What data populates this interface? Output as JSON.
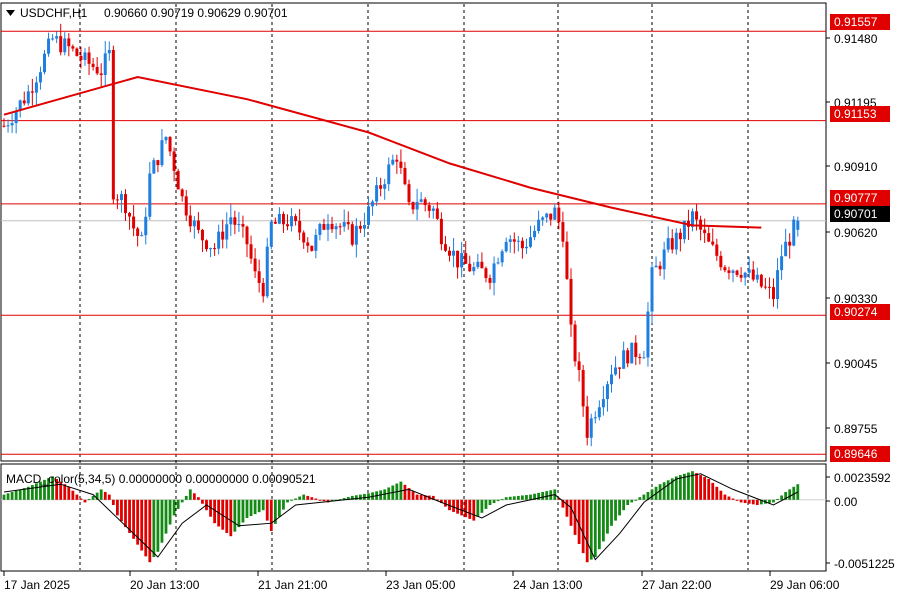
{
  "header": {
    "symbol": "USDCHF,H1",
    "ohlc": "0.90660 0.90719 0.90629 0.90701"
  },
  "indicator": {
    "title": "MACD_color(5,34,5) 0.00000000 0.00000000 0.00090521",
    "axis_labels": [
      "0.0023592",
      "0.00",
      "-0.0051225"
    ]
  },
  "price_axis": {
    "labels": [
      "0.91480",
      "0.91195",
      "0.90910",
      "0.90620",
      "0.90330",
      "0.90045",
      "0.89755"
    ]
  },
  "levels": [
    {
      "label": "0.91557",
      "color": "#e00000",
      "kind": "resistance"
    },
    {
      "label": "0.91153",
      "color": "#e00000",
      "kind": "resistance"
    },
    {
      "label": "0.90777",
      "color": "#e00000",
      "kind": "resistance"
    },
    {
      "label": "0.90274",
      "color": "#e00000",
      "kind": "support"
    },
    {
      "label": "0.89646",
      "color": "#e00000",
      "kind": "support"
    }
  ],
  "current_price": {
    "label": "0.90701",
    "color": "#000000"
  },
  "time_axis": {
    "labels": [
      "17 Jan 2025",
      "20 Jan 13:00",
      "21 Jan 21:00",
      "23 Jan 05:00",
      "24 Jan 13:00",
      "27 Jan 22:00",
      "29 Jan 06:00"
    ]
  },
  "colors": {
    "bull": "#1e7fe0",
    "bear": "#e00000",
    "ma": "#e00000",
    "macd_pos": "#138a13",
    "macd_neg": "#e00000"
  },
  "chart_data": {
    "type": "candlestick",
    "symbol": "USDCHF",
    "timeframe": "H1",
    "last_bar": {
      "open": 0.9066,
      "high": 0.90719,
      "low": 0.90629,
      "close": 0.90701
    },
    "ylim": [
      0.8962,
      0.9168
    ],
    "close_path": [
      [
        0,
        0.9113
      ],
      [
        6,
        0.9128
      ],
      [
        12,
        0.9152
      ],
      [
        16,
        0.9148
      ],
      [
        20,
        0.9142
      ],
      [
        24,
        0.9138
      ],
      [
        26,
        0.9145
      ],
      [
        27,
        0.9084
      ],
      [
        30,
        0.9078
      ],
      [
        32,
        0.9067
      ],
      [
        34,
        0.906
      ],
      [
        36,
        0.909
      ],
      [
        40,
        0.9108
      ],
      [
        42,
        0.9095
      ],
      [
        44,
        0.908
      ],
      [
        48,
        0.9064
      ],
      [
        52,
        0.9058
      ],
      [
        56,
        0.9072
      ],
      [
        60,
        0.906
      ],
      [
        62,
        0.9045
      ],
      [
        64,
        0.904
      ],
      [
        66,
        0.9068
      ],
      [
        70,
        0.907
      ],
      [
        74,
        0.9064
      ],
      [
        76,
        0.9058
      ],
      [
        80,
        0.9072
      ],
      [
        86,
        0.9063
      ],
      [
        90,
        0.9074
      ],
      [
        94,
        0.909
      ],
      [
        97,
        0.91
      ],
      [
        100,
        0.9075
      ],
      [
        102,
        0.908
      ],
      [
        106,
        0.9075
      ],
      [
        108,
        0.9064
      ],
      [
        112,
        0.9052
      ],
      [
        116,
        0.9048
      ],
      [
        120,
        0.9046
      ],
      [
        124,
        0.9064
      ],
      [
        128,
        0.9058
      ],
      [
        132,
        0.9068
      ],
      [
        136,
        0.9074
      ],
      [
        138,
        0.9065
      ],
      [
        140,
        0.9019
      ],
      [
        142,
        0.8999
      ],
      [
        144,
        0.8975
      ],
      [
        146,
        0.8985
      ],
      [
        150,
        0.9003
      ],
      [
        154,
        0.901
      ],
      [
        158,
        0.9012
      ],
      [
        160,
        0.9045
      ],
      [
        164,
        0.9058
      ],
      [
        168,
        0.9066
      ],
      [
        170,
        0.9072
      ],
      [
        174,
        0.9059
      ],
      [
        178,
        0.905
      ],
      [
        182,
        0.9048
      ],
      [
        186,
        0.9042
      ],
      [
        190,
        0.9036
      ],
      [
        192,
        0.9055
      ],
      [
        196,
        0.907
      ]
    ],
    "moving_average": [
      [
        0,
        0.9118
      ],
      [
        33,
        0.9135
      ],
      [
        60,
        0.9125
      ],
      [
        90,
        0.911
      ],
      [
        110,
        0.9096
      ],
      [
        130,
        0.9085
      ],
      [
        150,
        0.9076
      ],
      [
        170,
        0.9068
      ],
      [
        187,
        0.9067
      ]
    ],
    "macd_histogram_path": [
      [
        0,
        0.0004
      ],
      [
        6,
        0.001
      ],
      [
        12,
        0.0018
      ],
      [
        16,
        0.001
      ],
      [
        20,
        -0.0002
      ],
      [
        24,
        0.0008
      ],
      [
        26,
        0.0004
      ],
      [
        28,
        -0.0012
      ],
      [
        32,
        -0.003
      ],
      [
        36,
        -0.0048
      ],
      [
        38,
        -0.004
      ],
      [
        42,
        -0.0012
      ],
      [
        46,
        0.0008
      ],
      [
        48,
        0.0002
      ],
      [
        52,
        -0.0018
      ],
      [
        56,
        -0.0028
      ],
      [
        60,
        -0.0014
      ],
      [
        64,
        -0.0008
      ],
      [
        66,
        -0.0024
      ],
      [
        70,
        -0.0002
      ],
      [
        74,
        0.0004
      ],
      [
        80,
        -0.0002
      ],
      [
        86,
        0.0003
      ],
      [
        90,
        0.0005
      ],
      [
        94,
        0.0008
      ],
      [
        98,
        0.0014
      ],
      [
        102,
        0.0004
      ],
      [
        106,
        0.0003
      ],
      [
        110,
        -0.0008
      ],
      [
        116,
        -0.0016
      ],
      [
        120,
        -0.0004
      ],
      [
        124,
        0.0002
      ],
      [
        130,
        0.0004
      ],
      [
        136,
        0.0008
      ],
      [
        140,
        -0.002
      ],
      [
        144,
        -0.0048
      ],
      [
        146,
        -0.0044
      ],
      [
        150,
        -0.002
      ],
      [
        154,
        -0.0004
      ],
      [
        158,
        0.0004
      ],
      [
        162,
        0.0012
      ],
      [
        166,
        0.0018
      ],
      [
        170,
        0.0022
      ],
      [
        174,
        0.0016
      ],
      [
        178,
        0.0004
      ],
      [
        182,
        -0.0002
      ],
      [
        186,
        -0.0004
      ],
      [
        190,
        -0.0002
      ],
      [
        193,
        0.0006
      ],
      [
        196,
        0.0012
      ]
    ],
    "macd_signal_path": [
      [
        0,
        0.0006
      ],
      [
        14,
        0.0012
      ],
      [
        22,
        0.0004
      ],
      [
        30,
        -0.002
      ],
      [
        38,
        -0.0044
      ],
      [
        44,
        -0.0018
      ],
      [
        50,
        -0.0004
      ],
      [
        58,
        -0.002
      ],
      [
        66,
        -0.0018
      ],
      [
        72,
        -0.0004
      ],
      [
        90,
        0.0002
      ],
      [
        100,
        0.0008
      ],
      [
        108,
        -0.0002
      ],
      [
        118,
        -0.0014
      ],
      [
        124,
        -0.0004
      ],
      [
        136,
        0.0004
      ],
      [
        140,
        -0.0006
      ],
      [
        146,
        -0.0046
      ],
      [
        152,
        -0.0026
      ],
      [
        158,
        -0.0002
      ],
      [
        166,
        0.0016
      ],
      [
        172,
        0.002
      ],
      [
        180,
        0.0008
      ],
      [
        190,
        -0.0004
      ],
      [
        196,
        0.0006
      ]
    ],
    "macd_ylim": [
      -0.0054,
      0.0026
    ]
  }
}
